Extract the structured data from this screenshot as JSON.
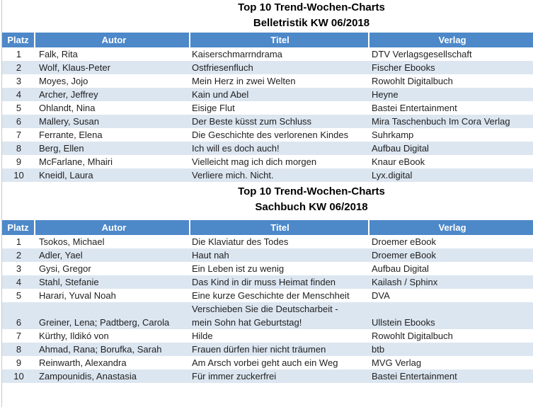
{
  "colors": {
    "header_bg": "#4d88c9",
    "band_bg": "#dce6f1",
    "header_text": "#ffffff",
    "body_text": "#1f1f1f"
  },
  "tables": [
    {
      "title1": "Top 10 Trend-Wochen-Charts",
      "title2": "Belletristik KW 06/2018",
      "columns": [
        "Platz",
        "Autor",
        "Titel",
        "Verlag"
      ],
      "rows": [
        {
          "platz": "1",
          "autor": "Falk, Rita",
          "titel": "Kaiserschmarrndrama",
          "verlag": "DTV Verlagsgesellschaft"
        },
        {
          "platz": "2",
          "autor": "Wolf, Klaus-Peter",
          "titel": "Ostfriesenfluch",
          "verlag": "Fischer Ebooks"
        },
        {
          "platz": "3",
          "autor": "Moyes, Jojo",
          "titel": "Mein Herz in zwei Welten",
          "verlag": "Rowohlt Digitalbuch"
        },
        {
          "platz": "4",
          "autor": "Archer, Jeffrey",
          "titel": "Kain und Abel",
          "verlag": "Heyne"
        },
        {
          "platz": "5",
          "autor": "Ohlandt, Nina",
          "titel": "Eisige Flut",
          "verlag": "Bastei Entertainment"
        },
        {
          "platz": "6",
          "autor": "Mallery, Susan",
          "titel": "Der Beste küsst zum Schluss",
          "verlag": "Mira Taschenbuch Im Cora Verlag"
        },
        {
          "platz": "7",
          "autor": "Ferrante, Elena",
          "titel": "Die Geschichte des verlorenen Kindes",
          "verlag": "Suhrkamp"
        },
        {
          "platz": "8",
          "autor": "Berg, Ellen",
          "titel": "Ich will es doch auch!",
          "verlag": "Aufbau Digital"
        },
        {
          "platz": "9",
          "autor": "McFarlane, Mhairi",
          "titel": "Vielleicht mag ich dich morgen",
          "verlag": "Knaur eBook"
        },
        {
          "platz": "10",
          "autor": "Kneidl, Laura",
          "titel": "Verliere mich. Nicht.",
          "verlag": "Lyx.digital"
        }
      ]
    },
    {
      "title1": "Top 10 Trend-Wochen-Charts",
      "title2": "Sachbuch KW 06/2018",
      "columns": [
        "Platz",
        "Autor",
        "Titel",
        "Verlag"
      ],
      "rows": [
        {
          "platz": "1",
          "autor": "Tsokos, Michael",
          "titel": "Die Klaviatur des Todes",
          "verlag": "Droemer eBook"
        },
        {
          "platz": "2",
          "autor": "Adler, Yael",
          "titel": "Haut nah",
          "verlag": "Droemer eBook"
        },
        {
          "platz": "3",
          "autor": "Gysi, Gregor",
          "titel": "Ein Leben ist zu wenig",
          "verlag": "Aufbau Digital"
        },
        {
          "platz": "4",
          "autor": "Stahl, Stefanie",
          "titel": "Das Kind in dir muss Heimat finden",
          "verlag": "Kailash / Sphinx"
        },
        {
          "platz": "5",
          "autor": "Harari, Yuval Noah",
          "titel": "Eine kurze Geschichte der Menschheit",
          "verlag": "DVA"
        },
        {
          "platz": "6",
          "autor": "Greiner, Lena; Padtberg, Carola",
          "titel": "Verschieben Sie die Deutscharbeit -\nmein Sohn hat Geburtstag!",
          "verlag": "Ullstein Ebooks"
        },
        {
          "platz": "7",
          "autor": "Kürthy, Ildikó von",
          "titel": "Hilde",
          "verlag": "Rowohlt Digitalbuch"
        },
        {
          "platz": "8",
          "autor": "Ahmad, Rana; Borufka, Sarah",
          "titel": "Frauen dürfen hier nicht träumen",
          "verlag": "btb"
        },
        {
          "platz": "9",
          "autor": "Reinwarth, Alexandra",
          "titel": "Am Arsch vorbei geht auch ein Weg",
          "verlag": "MVG Verlag"
        },
        {
          "platz": "10",
          "autor": "Zampounidis, Anastasia",
          "titel": "Für immer zuckerfrei",
          "verlag": "Bastei Entertainment"
        }
      ]
    }
  ]
}
